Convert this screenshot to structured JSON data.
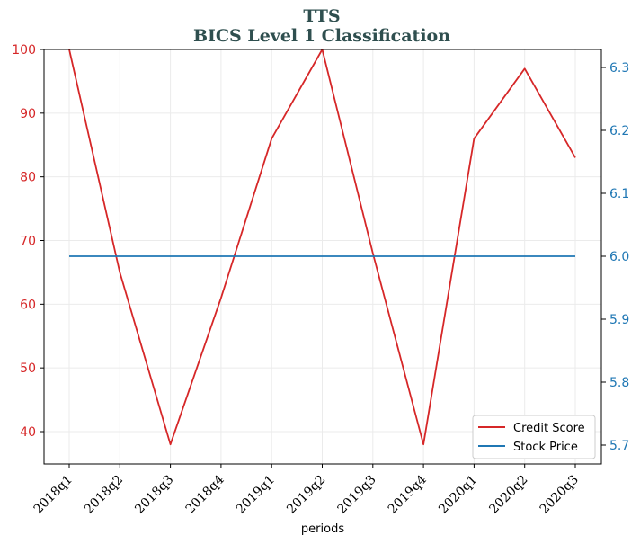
{
  "chart_data": {
    "type": "line",
    "title": "TTS",
    "subtitle": "BICS Level 1 Classification",
    "xlabel": "periods",
    "categories": [
      "2018q1",
      "2018q2",
      "2018q3",
      "2018q4",
      "2019q1",
      "2019q2",
      "2019q3",
      "2019q4",
      "2020q1",
      "2020q2",
      "2020q3"
    ],
    "series": [
      {
        "name": "Credit Score",
        "axis": "left",
        "color": "#d62728",
        "values": [
          100,
          65,
          38,
          61,
          86,
          100,
          68,
          38,
          86,
          97,
          83
        ]
      },
      {
        "name": "Stock Price",
        "axis": "right",
        "color": "#1f77b4",
        "values": [
          6.0,
          6.0,
          6.0,
          6.0,
          6.0,
          6.0,
          6.0,
          6.0,
          6.0,
          6.0,
          6.0
        ]
      }
    ],
    "y_left": {
      "ticks": [
        40,
        50,
        60,
        70,
        80,
        90,
        100
      ],
      "ylim": [
        35,
        100
      ],
      "color": "#d62728"
    },
    "y_right": {
      "ticks": [
        5.7,
        5.8,
        5.9,
        6.0,
        6.1,
        6.2,
        6.3
      ],
      "ylim": [
        5.67,
        6.33
      ],
      "color": "#1f77b4"
    },
    "grid": true,
    "legend_position": "bottom-right"
  }
}
